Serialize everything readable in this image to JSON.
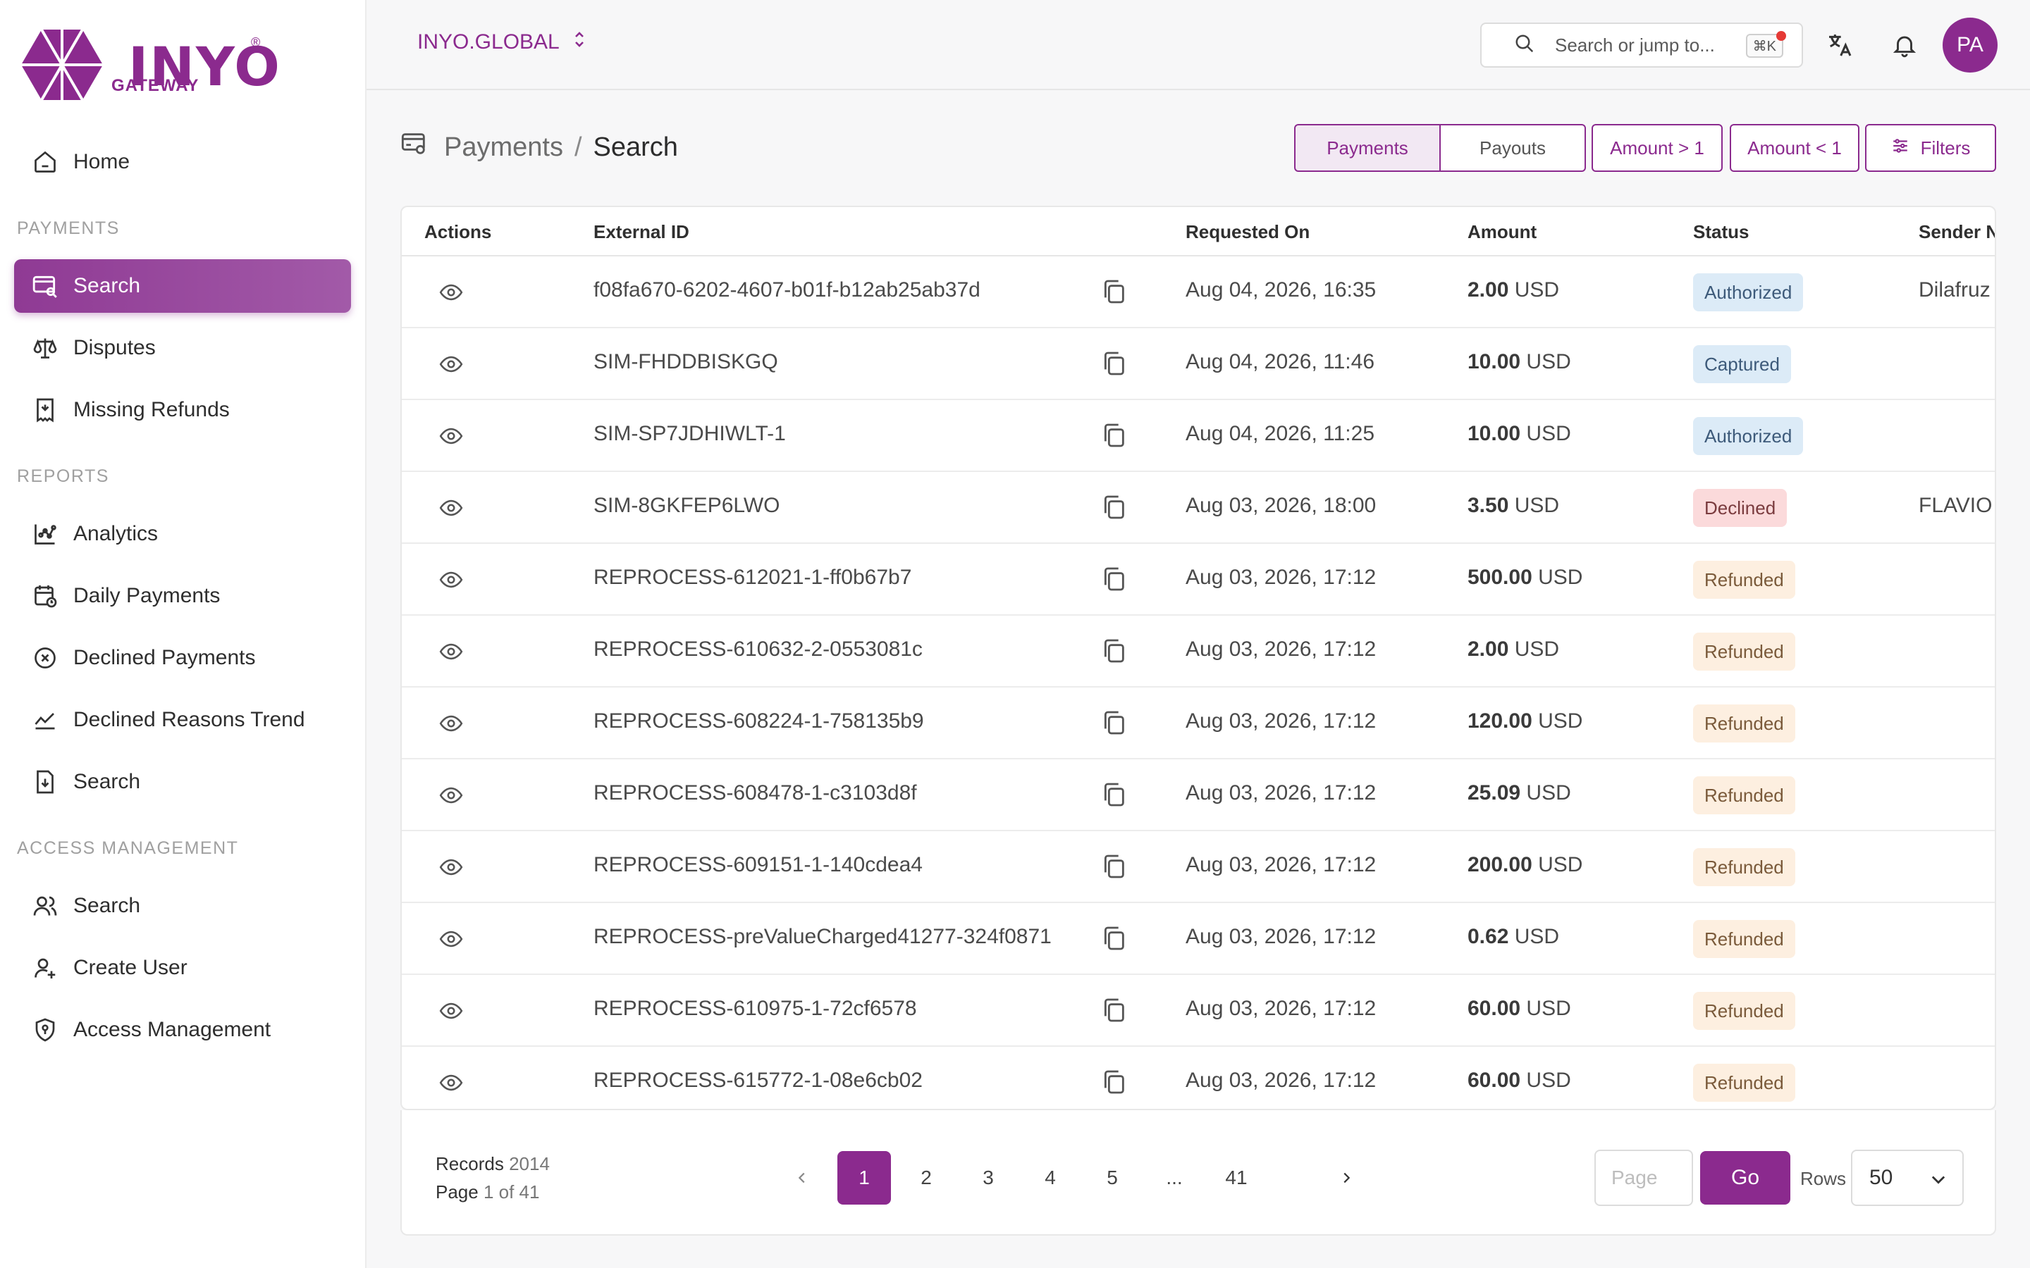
{
  "brand": {
    "logo_text": "INYO",
    "logo_sub": "GATEWAY",
    "color": "#8b2a8e"
  },
  "sidebar": {
    "home": {
      "label": "Home",
      "icon": "home-icon"
    },
    "sections": [
      {
        "title": "PAYMENTS",
        "items": [
          {
            "label": "Search",
            "icon": "card-search-icon",
            "active": true
          },
          {
            "label": "Disputes",
            "icon": "scale-icon"
          },
          {
            "label": "Missing Refunds",
            "icon": "receipt-icon"
          }
        ]
      },
      {
        "title": "REPORTS",
        "items": [
          {
            "label": "Analytics",
            "icon": "analytics-icon"
          },
          {
            "label": "Daily Payments",
            "icon": "calendar-icon"
          },
          {
            "label": "Declined Payments",
            "icon": "x-circle-icon"
          },
          {
            "label": "Declined Reasons Trend",
            "icon": "trend-icon"
          },
          {
            "label": "Search",
            "icon": "document-download-icon"
          }
        ]
      },
      {
        "title": "ACCESS MANAGEMENT",
        "items": [
          {
            "label": "Search",
            "icon": "users-icon"
          },
          {
            "label": "Create User",
            "icon": "user-plus-icon"
          },
          {
            "label": "Access Management",
            "icon": "shield-icon"
          }
        ]
      }
    ]
  },
  "topbar": {
    "org": "INYO.GLOBAL",
    "search_placeholder": "Search or jump to...",
    "shortcut": "⌘K",
    "avatar_initials": "PA"
  },
  "header": {
    "crumb_parent": "Payments",
    "crumb_sep": "/",
    "crumb_current": "Search",
    "toggle": [
      "Payments",
      "Payouts"
    ],
    "chips": [
      "Amount > 1",
      "Amount < 1"
    ],
    "filters_label": "Filters"
  },
  "table": {
    "columns": [
      "Actions",
      "External ID",
      "Requested On",
      "Amount",
      "Status",
      "Sender N"
    ],
    "rows": [
      {
        "id": "f08fa670-6202-4607-b01f-b12ab25ab37d",
        "date": "Aug 04, 2026, 16:35",
        "amount": "2.00",
        "currency": "USD",
        "status": "Authorized",
        "sender": "Dilafruz"
      },
      {
        "id": "SIM-FHDDBISKGQ",
        "date": "Aug 04, 2026, 11:46",
        "amount": "10.00",
        "currency": "USD",
        "status": "Captured",
        "sender": ""
      },
      {
        "id": "SIM-SP7JDHIWLT-1",
        "date": "Aug 04, 2026, 11:25",
        "amount": "10.00",
        "currency": "USD",
        "status": "Authorized",
        "sender": ""
      },
      {
        "id": "SIM-8GKFEP6LWO",
        "date": "Aug 03, 2026, 18:00",
        "amount": "3.50",
        "currency": "USD",
        "status": "Declined",
        "sender": "FLAVIO"
      },
      {
        "id": "REPROCESS-612021-1-ff0b67b7",
        "date": "Aug 03, 2026, 17:12",
        "amount": "500.00",
        "currency": "USD",
        "status": "Refunded",
        "sender": ""
      },
      {
        "id": "REPROCESS-610632-2-0553081c",
        "date": "Aug 03, 2026, 17:12",
        "amount": "2.00",
        "currency": "USD",
        "status": "Refunded",
        "sender": ""
      },
      {
        "id": "REPROCESS-608224-1-758135b9",
        "date": "Aug 03, 2026, 17:12",
        "amount": "120.00",
        "currency": "USD",
        "status": "Refunded",
        "sender": ""
      },
      {
        "id": "REPROCESS-608478-1-c3103d8f",
        "date": "Aug 03, 2026, 17:12",
        "amount": "25.09",
        "currency": "USD",
        "status": "Refunded",
        "sender": ""
      },
      {
        "id": "REPROCESS-609151-1-140cdea4",
        "date": "Aug 03, 2026, 17:12",
        "amount": "200.00",
        "currency": "USD",
        "status": "Refunded",
        "sender": ""
      },
      {
        "id": "REPROCESS-preValueCharged41277-324f0871",
        "date": "Aug 03, 2026, 17:12",
        "amount": "0.62",
        "currency": "USD",
        "status": "Refunded",
        "sender": ""
      },
      {
        "id": "REPROCESS-610975-1-72cf6578",
        "date": "Aug 03, 2026, 17:12",
        "amount": "60.00",
        "currency": "USD",
        "status": "Refunded",
        "sender": ""
      },
      {
        "id": "REPROCESS-615772-1-08e6cb02",
        "date": "Aug 03, 2026, 17:12",
        "amount": "60.00",
        "currency": "USD",
        "status": "Refunded",
        "sender": ""
      }
    ]
  },
  "pagination": {
    "records_label": "Records",
    "records_count": "2014",
    "page_label": "Page",
    "page_of": "1 of 41",
    "pages": [
      "1",
      "2",
      "3",
      "4",
      "5",
      "...",
      "41"
    ],
    "current": "1",
    "page_placeholder": "Page",
    "go_label": "Go",
    "rows_label": "Rows",
    "rows_value": "50"
  },
  "status_colors": {
    "Authorized": "#dcebf7",
    "Captured": "#dcebf7",
    "Declined": "#fbdadb",
    "Refunded": "#fdefe0"
  }
}
